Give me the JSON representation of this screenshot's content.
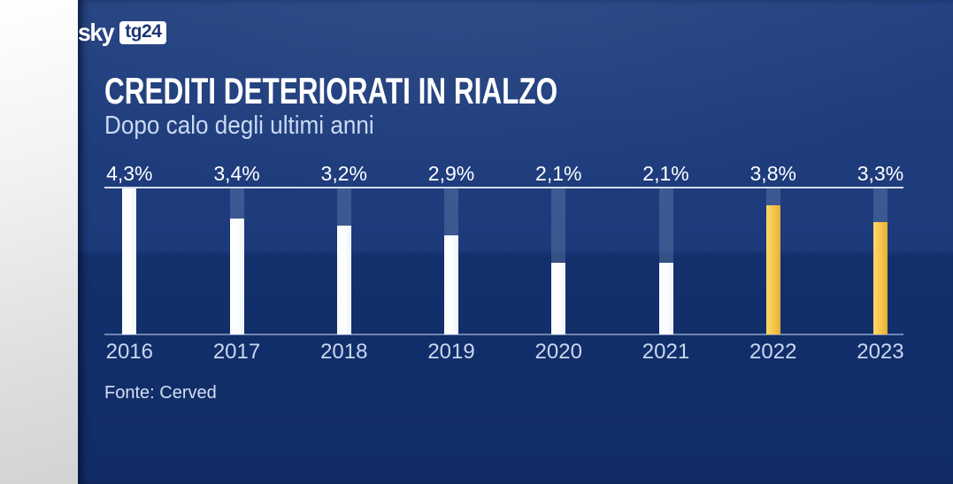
{
  "brand": {
    "sky_label": "sky",
    "tg24_label": "tg24"
  },
  "header": {
    "title": "CREDITI DETERIORATI IN RIALZO",
    "subtitle": "Dopo calo degli ultimi anni"
  },
  "footer": {
    "source": "Fonte: Cerved"
  },
  "colors": {
    "background_upper": "#1d3a7b",
    "background_lower": "#112c67",
    "bar_white": "#ffffff",
    "bar_yellow": "#f6c64a",
    "top_line": "#e3ecfb",
    "value_text": "#ffffff",
    "year_text": "#c9d7ef"
  },
  "chart_data": {
    "type": "bar",
    "title": "CREDITI DETERIORATI IN RIALZO",
    "subtitle": "Dopo calo degli ultimi anni",
    "source": "Fonte: Cerved",
    "categories": [
      "2016",
      "2017",
      "2018",
      "2019",
      "2020",
      "2021",
      "2022",
      "2023"
    ],
    "values": [
      4.3,
      3.4,
      3.2,
      2.9,
      2.1,
      2.1,
      3.8,
      3.3
    ],
    "value_labels": [
      "4,3%",
      "3,4%",
      "3,2%",
      "2,9%",
      "2,1%",
      "2,1%",
      "3,8%",
      "3,3%"
    ],
    "bar_colors": [
      "white",
      "white",
      "white",
      "white",
      "white",
      "white",
      "yellow",
      "yellow"
    ],
    "unit": "%",
    "ylim": [
      0,
      4.3
    ],
    "grid": false,
    "legend": false,
    "orientation": "vertical",
    "value_label_position": "above-axis-line"
  }
}
